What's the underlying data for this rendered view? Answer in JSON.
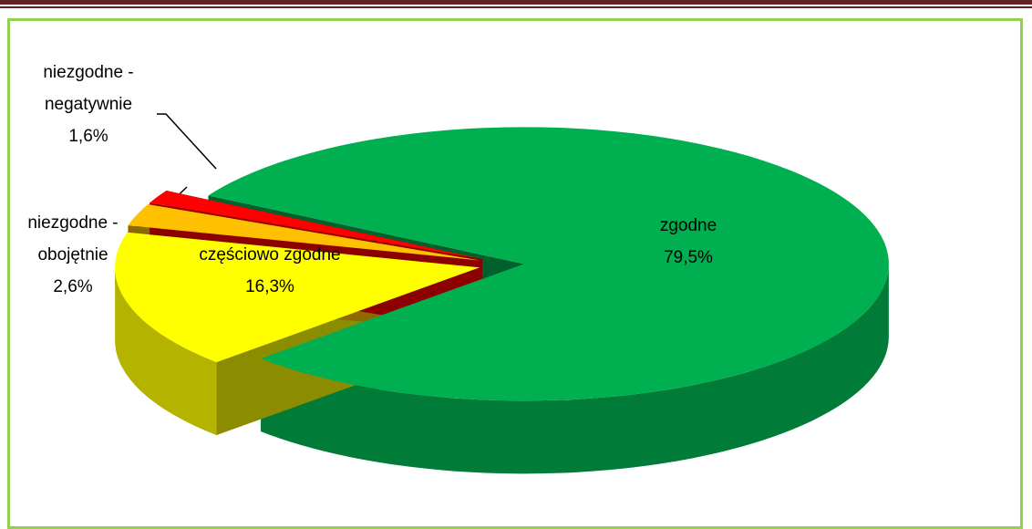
{
  "chart_data": {
    "type": "pie",
    "categories": [
      "zgodne",
      "częściowo zgodne",
      "niezgodne - obojętnie",
      "niezgodne - negatywnie"
    ],
    "values": [
      79.5,
      16.3,
      2.6,
      1.6
    ],
    "value_labels": [
      "79,5%",
      "16,3%",
      "2,6%",
      "1,6%"
    ],
    "colors": [
      "#00b050",
      "#ffff00",
      "#ffc000",
      "#ff0000"
    ]
  }
}
